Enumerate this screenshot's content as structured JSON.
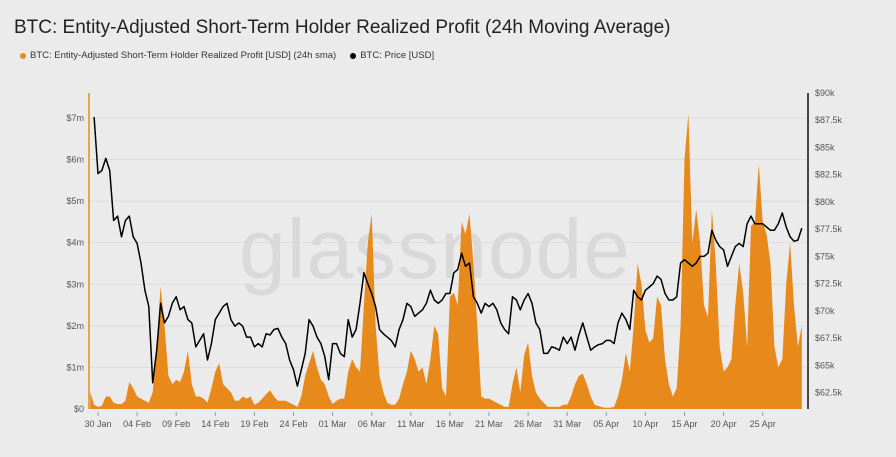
{
  "chart_data": {
    "type": "area+line",
    "title": "BTC: Entity-Adjusted Short-Term Holder Realized Profit (24h Moving Average)",
    "watermark": "glassnode",
    "legend_placement": "top-left",
    "grid": true,
    "series": [
      {
        "name": "BTC: Entity-Adjusted Short-Term Holder Realized Profit [USD] (24h sma)",
        "type": "area",
        "axis": "left",
        "unit": "USD millions",
        "color": "#e8891c"
      },
      {
        "name": "BTC: Price [USD]",
        "type": "line",
        "axis": "right",
        "unit": "USD thousands",
        "color": "#000000"
      }
    ],
    "left_axis": {
      "range": [
        0,
        7.6
      ],
      "ticks": [
        0,
        1,
        2,
        3,
        4,
        5,
        6,
        7
      ],
      "tick_labels": [
        "$0",
        "$1m",
        "$2m",
        "$3m",
        "$4m",
        "$5m",
        "$6m",
        "$7m"
      ]
    },
    "right_axis": {
      "range": [
        61,
        90
      ],
      "ticks": [
        62.5,
        65,
        67.5,
        70,
        72.5,
        75,
        77.5,
        80,
        82.5,
        85,
        87.5,
        90
      ],
      "tick_labels": [
        "$62.5k",
        "$65k",
        "$67.5k",
        "$70k",
        "$72.5k",
        "$75k",
        "$77.5k",
        "$80k",
        "$82.5k",
        "$85k",
        "$87.5k",
        "$90k"
      ]
    },
    "x_axis": {
      "tick_labels": [
        "30 Jan",
        "04 Feb",
        "09 Feb",
        "14 Feb",
        "19 Feb",
        "24 Feb",
        "01 Mar",
        "06 Mar",
        "11 Mar",
        "16 Mar",
        "21 Mar",
        "26 Mar",
        "31 Mar",
        "05 Apr",
        "10 Apr",
        "15 Apr",
        "20 Apr",
        "25 Apr"
      ]
    },
    "columns": [
      "date",
      "profit_00h",
      "profit_12h",
      "price_00h",
      "price_12h"
    ],
    "rows": [
      [
        "Jan 29",
        0.4,
        0.1,
        null,
        87.8
      ],
      [
        "Jan 30",
        0.05,
        0.08,
        82.6,
        82.9
      ],
      [
        "Jan 31",
        0.3,
        0.3,
        84.0,
        82.9
      ],
      [
        "Feb 1",
        0.15,
        0.12,
        78.3,
        78.7
      ],
      [
        "Feb 2",
        0.12,
        0.2,
        76.8,
        78.3
      ],
      [
        "Feb 3",
        0.65,
        0.5,
        78.7,
        76.8
      ],
      [
        "Feb 4",
        0.3,
        0.25,
        76.2,
        74.4
      ],
      [
        "Feb 5",
        0.2,
        0.15,
        71.9,
        70.4
      ],
      [
        "Feb 6",
        0.4,
        1.5,
        63.4,
        66.4
      ],
      [
        "Feb 7",
        2.95,
        2.0,
        70.7,
        68.9
      ],
      [
        "Feb 8",
        0.8,
        0.6,
        69.5,
        70.7
      ],
      [
        "Feb 9",
        0.7,
        0.65,
        71.3,
        70.1
      ],
      [
        "Feb 10",
        0.9,
        1.4,
        70.4,
        69.2
      ],
      [
        "Feb 11",
        0.6,
        0.3,
        68.9,
        66.7
      ],
      [
        "Feb 12",
        0.3,
        0.25,
        67.3,
        67.9
      ],
      [
        "Feb 13",
        0.15,
        0.5,
        65.5,
        67.0
      ],
      [
        "Feb 14",
        0.9,
        1.1,
        69.2,
        69.8
      ],
      [
        "Feb 15",
        0.6,
        0.5,
        70.4,
        70.7
      ],
      [
        "Feb 16",
        0.4,
        0.2,
        69.2,
        68.6
      ],
      [
        "Feb 17",
        0.2,
        0.3,
        68.9,
        68.6
      ],
      [
        "Feb 18",
        0.25,
        0.3,
        67.6,
        67.6
      ],
      [
        "Feb 19",
        0.1,
        0.15,
        66.7,
        67.0
      ],
      [
        "Feb 20",
        0.25,
        0.35,
        66.7,
        67.9
      ],
      [
        "Feb 21",
        0.45,
        0.3,
        67.8,
        68.3
      ],
      [
        "Feb 22",
        0.2,
        0.2,
        68.4,
        67.6
      ],
      [
        "Feb 23",
        0.2,
        0.15,
        67.0,
        65.5
      ],
      [
        "Feb 24",
        0.1,
        0.05,
        64.6,
        63.1
      ],
      [
        "Feb 25",
        0.3,
        0.8,
        64.6,
        66.1
      ],
      [
        "Feb 26",
        1.1,
        1.4,
        69.2,
        68.6
      ],
      [
        "Feb 27",
        1.0,
        0.7,
        67.6,
        67.0
      ],
      [
        "Feb 28",
        0.6,
        0.3,
        65.8,
        63.7
      ],
      [
        "Mar 1",
        0.12,
        0.2,
        67.0,
        67.0
      ],
      [
        "Mar 2",
        0.25,
        0.25,
        66.1,
        65.8
      ],
      [
        "Mar 3",
        0.9,
        1.2,
        69.2,
        67.6
      ],
      [
        "Mar 4",
        1.0,
        0.9,
        68.3,
        70.7
      ],
      [
        "Mar 5",
        2.5,
        4.0,
        73.5,
        72.5
      ],
      [
        "Mar 6",
        4.7,
        2.0,
        71.6,
        70.4
      ],
      [
        "Mar 7",
        0.8,
        0.4,
        68.3,
        67.9
      ],
      [
        "Mar 8",
        0.15,
        0.1,
        67.6,
        67.3
      ],
      [
        "Mar 9",
        0.1,
        0.25,
        66.7,
        68.3
      ],
      [
        "Mar 10",
        0.6,
        0.9,
        69.2,
        70.7
      ],
      [
        "Mar 11",
        1.4,
        1.2,
        70.4,
        69.5
      ],
      [
        "Mar 12",
        0.9,
        1.0,
        69.8,
        70.1
      ],
      [
        "Mar 13",
        0.6,
        1.2,
        70.7,
        71.9
      ],
      [
        "Mar 14",
        2.0,
        1.8,
        71.0,
        70.7
      ],
      [
        "Mar 15",
        0.5,
        0.3,
        71.0,
        71.6
      ],
      [
        "Mar 16",
        2.7,
        2.8,
        71.6,
        73.5
      ],
      [
        "Mar 17",
        2.5,
        4.5,
        73.8,
        75.3
      ],
      [
        "Mar 18",
        4.2,
        4.7,
        74.1,
        74.4
      ],
      [
        "Mar 19",
        3.5,
        2.0,
        71.3,
        70.7
      ],
      [
        "Mar 20",
        0.3,
        0.25,
        69.8,
        70.7
      ],
      [
        "Mar 21",
        0.25,
        0.2,
        70.4,
        70.7
      ],
      [
        "Mar 22",
        0.15,
        0.1,
        70.1,
        68.9
      ],
      [
        "Mar 23",
        0.05,
        0.05,
        68.3,
        67.9
      ],
      [
        "Mar 24",
        0.6,
        1.0,
        71.3,
        71.0
      ],
      [
        "Mar 25",
        0.4,
        1.3,
        70.1,
        71.0
      ],
      [
        "Mar 26",
        1.6,
        0.8,
        71.6,
        70.7
      ],
      [
        "Mar 27",
        0.4,
        0.25,
        68.9,
        68.3
      ],
      [
        "Mar 28",
        0.15,
        0.05,
        66.1,
        66.1
      ],
      [
        "Mar 29",
        0.05,
        0.05,
        66.7,
        66.6
      ],
      [
        "Mar 30",
        0.05,
        0.1,
        66.4,
        67.6
      ],
      [
        "Mar 31",
        0.1,
        0.3,
        67.0,
        67.6
      ],
      [
        "Apr 1",
        0.6,
        0.8,
        66.4,
        67.8
      ],
      [
        "Apr 2",
        0.85,
        0.6,
        68.9,
        67.6
      ],
      [
        "Apr 3",
        0.3,
        0.1,
        66.4,
        66.7
      ],
      [
        "Apr 4",
        0.07,
        0.04,
        66.9,
        67.0
      ],
      [
        "Apr 5",
        0.03,
        0.03,
        67.3,
        67.3
      ],
      [
        "Apr 6",
        0.05,
        0.3,
        67.0,
        68.9
      ],
      [
        "Apr 7",
        0.7,
        1.35,
        69.8,
        69.2
      ],
      [
        "Apr 8",
        0.9,
        2.0,
        68.3,
        71.9
      ],
      [
        "Apr 9",
        3.5,
        3.0,
        71.3,
        71.0
      ],
      [
        "Apr 10",
        1.9,
        1.6,
        71.9,
        72.2
      ],
      [
        "Apr 11",
        1.7,
        2.7,
        72.5,
        73.2
      ],
      [
        "Apr 12",
        2.5,
        1.2,
        72.9,
        71.6
      ],
      [
        "Apr 13",
        0.6,
        0.3,
        71.0,
        71.0
      ],
      [
        "Apr 14",
        0.5,
        2.0,
        71.3,
        74.4
      ],
      [
        "Apr 15",
        6.0,
        7.1,
        74.7,
        74.4
      ],
      [
        "Apr 16",
        4.0,
        4.8,
        74.1,
        74.4
      ],
      [
        "Apr 17",
        4.0,
        2.5,
        75.0,
        75.0
      ],
      [
        "Apr 18",
        2.2,
        4.8,
        75.3,
        77.4
      ],
      [
        "Apr 19",
        3.5,
        1.5,
        76.5,
        75.9
      ],
      [
        "Apr 20",
        0.9,
        1.0,
        75.6,
        74.1
      ],
      [
        "Apr 21",
        1.2,
        2.5,
        75.0,
        75.9
      ],
      [
        "Apr 22",
        3.5,
        2.8,
        76.2,
        75.9
      ],
      [
        "Apr 23",
        1.5,
        4.4,
        78.0,
        78.7
      ],
      [
        "Apr 24",
        4.5,
        5.9,
        78.0,
        78.0
      ],
      [
        "Apr 25",
        4.5,
        4.2,
        78.0,
        77.7
      ],
      [
        "Apr 26",
        3.5,
        1.5,
        77.4,
        77.4
      ],
      [
        "Apr 27",
        1.0,
        1.2,
        78.0,
        79.0
      ],
      [
        "Apr 28",
        3.0,
        4.0,
        77.7,
        76.8
      ],
      [
        "Apr 29",
        2.5,
        1.5,
        76.4,
        76.5
      ],
      [
        "Apr 30",
        2.0,
        null,
        77.6,
        null
      ]
    ]
  }
}
